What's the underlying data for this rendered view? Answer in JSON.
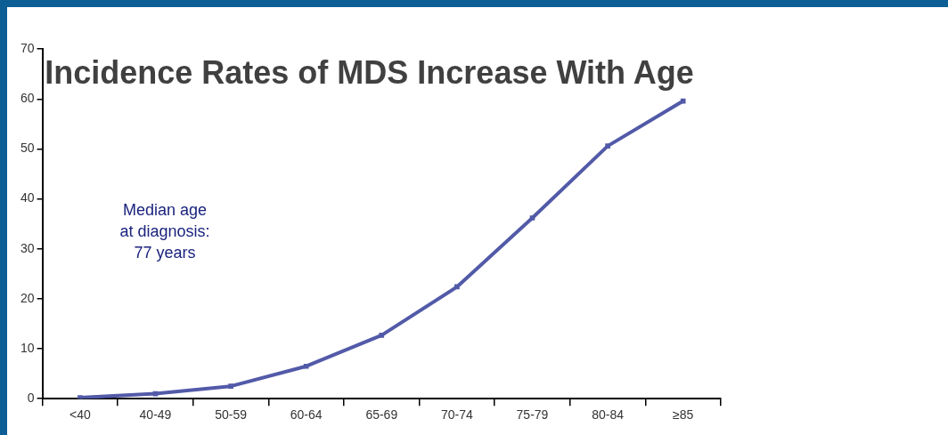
{
  "chart_data": {
    "type": "line",
    "title": "Incidence Rates of MDS Increase With Age",
    "categories": [
      "<40",
      "40-49",
      "50-59",
      "60-64",
      "65-69",
      "70-74",
      "75-79",
      "80-84",
      "≥85"
    ],
    "series": [
      {
        "color": "#525aa8",
        "values": [
          0.2,
          1,
          2.5,
          6.5,
          12.7,
          22.4,
          36.2,
          50.6,
          59.6
        ]
      }
    ],
    "ylim": [
      0,
      70
    ],
    "yticks": [
      0,
      10,
      20,
      30,
      40,
      50,
      60,
      70
    ],
    "annotations": [
      "Median age\nat diagnosis:\n77 years"
    ],
    "grid": false,
    "legend": false,
    "marker": "square",
    "line_style": "solid"
  }
}
